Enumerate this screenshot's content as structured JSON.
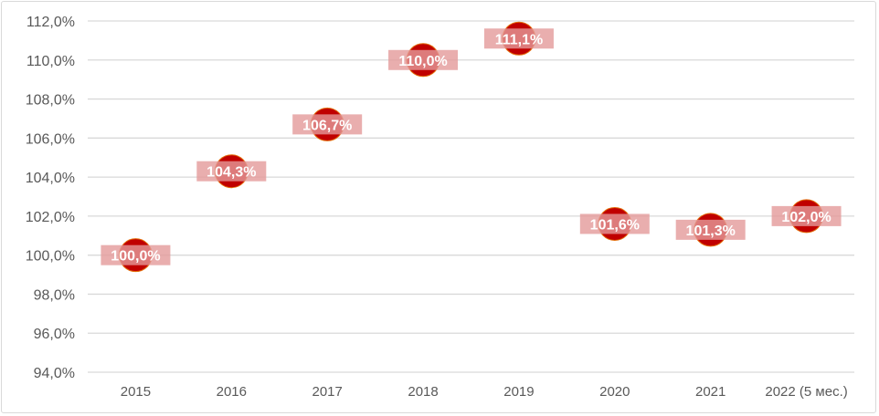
{
  "chart_data": {
    "type": "scatter",
    "title": "",
    "xlabel": "",
    "ylabel": "",
    "categories": [
      "2015",
      "2016",
      "2017",
      "2018",
      "2019",
      "2020",
      "2021",
      "2022 (5 мес.)"
    ],
    "values": [
      100.0,
      104.3,
      106.7,
      110.0,
      111.1,
      101.6,
      101.3,
      102.0
    ],
    "data_labels": [
      "100,0%",
      "104,3%",
      "106,7%",
      "110,0%",
      "111,1%",
      "101,6%",
      "101,3%",
      "102,0%"
    ],
    "ylim": [
      94,
      112
    ],
    "yticks": [
      "94,0%",
      "96,0%",
      "98,0%",
      "100,0%",
      "102,0%",
      "104,0%",
      "106,0%",
      "108,0%",
      "110,0%",
      "112,0%"
    ],
    "grid": true,
    "legend": "none",
    "colors": {
      "marker": "#c00000",
      "marker_border": "#e36c09",
      "label_bg": "#e49a9a",
      "grid": "#d9d9d9"
    }
  }
}
